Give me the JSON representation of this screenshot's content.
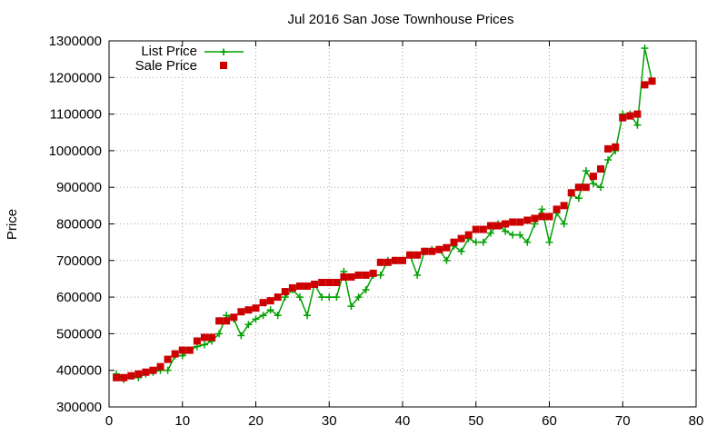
{
  "chart_data": {
    "type": "line",
    "title": "Jul 2016 San Jose Townhouse Prices",
    "ylabel": "Price",
    "xlabel": "",
    "xlim": [
      0,
      80
    ],
    "ylim": [
      300000,
      1300000
    ],
    "x_ticks": [
      0,
      10,
      20,
      30,
      40,
      50,
      60,
      70,
      80
    ],
    "y_ticks": [
      300000,
      400000,
      500000,
      600000,
      700000,
      800000,
      900000,
      1000000,
      1100000,
      1200000,
      1300000
    ],
    "grid": true,
    "legend_position": "top-left",
    "series": [
      {
        "name": "List Price",
        "style": "line-plus",
        "color": "#00a000",
        "x": [
          1,
          2,
          3,
          4,
          5,
          6,
          7,
          8,
          9,
          10,
          11,
          12,
          13,
          14,
          15,
          16,
          17,
          18,
          19,
          20,
          21,
          22,
          23,
          24,
          25,
          26,
          27,
          28,
          29,
          30,
          31,
          32,
          33,
          34,
          35,
          36,
          37,
          38,
          39,
          40,
          41,
          42,
          43,
          44,
          45,
          46,
          47,
          48,
          49,
          50,
          51,
          52,
          53,
          54,
          55,
          56,
          57,
          58,
          59,
          60,
          61,
          62,
          63,
          64,
          65,
          66,
          67,
          68,
          69,
          70,
          71,
          72,
          73,
          74
        ],
        "values": [
          390000,
          375000,
          385000,
          380000,
          390000,
          395000,
          400000,
          400000,
          440000,
          440000,
          455000,
          465000,
          470000,
          480000,
          500000,
          550000,
          540000,
          495000,
          525000,
          540000,
          550000,
          565000,
          550000,
          600000,
          620000,
          600000,
          550000,
          635000,
          600000,
          600000,
          600000,
          670000,
          575000,
          600000,
          620000,
          660000,
          660000,
          700000,
          700000,
          700000,
          715000,
          660000,
          725000,
          730000,
          730000,
          700000,
          740000,
          725000,
          760000,
          750000,
          750000,
          775000,
          800000,
          780000,
          770000,
          770000,
          750000,
          800000,
          840000,
          750000,
          830000,
          800000,
          880000,
          870000,
          945000,
          910000,
          900000,
          975000,
          1000000,
          1100000,
          1100000,
          1070000,
          1280000,
          1190000
        ]
      },
      {
        "name": "Sale Price",
        "style": "square",
        "color": "#cc0000",
        "x": [
          1,
          2,
          3,
          4,
          5,
          6,
          7,
          8,
          9,
          10,
          11,
          12,
          13,
          14,
          15,
          16,
          17,
          18,
          19,
          20,
          21,
          22,
          23,
          24,
          25,
          26,
          27,
          28,
          29,
          30,
          31,
          32,
          33,
          34,
          35,
          36,
          37,
          38,
          39,
          40,
          41,
          42,
          43,
          44,
          45,
          46,
          47,
          48,
          49,
          50,
          51,
          52,
          53,
          54,
          55,
          56,
          57,
          58,
          59,
          60,
          61,
          62,
          63,
          64,
          65,
          66,
          67,
          68,
          69,
          70,
          71,
          72,
          73,
          74
        ],
        "values": [
          380000,
          380000,
          385000,
          390000,
          395000,
          400000,
          410000,
          430000,
          445000,
          455000,
          455000,
          480000,
          490000,
          490000,
          535000,
          535000,
          545000,
          560000,
          565000,
          570000,
          585000,
          590000,
          600000,
          615000,
          625000,
          630000,
          630000,
          635000,
          640000,
          640000,
          640000,
          655000,
          655000,
          660000,
          660000,
          665000,
          695000,
          695000,
          700000,
          700000,
          715000,
          715000,
          725000,
          725000,
          730000,
          735000,
          750000,
          760000,
          770000,
          785000,
          785000,
          795000,
          795000,
          800000,
          805000,
          805000,
          810000,
          815000,
          820000,
          820000,
          840000,
          850000,
          885000,
          900000,
          900000,
          930000,
          950000,
          1005000,
          1010000,
          1090000,
          1095000,
          1100000,
          1180000,
          1190000
        ]
      }
    ]
  }
}
